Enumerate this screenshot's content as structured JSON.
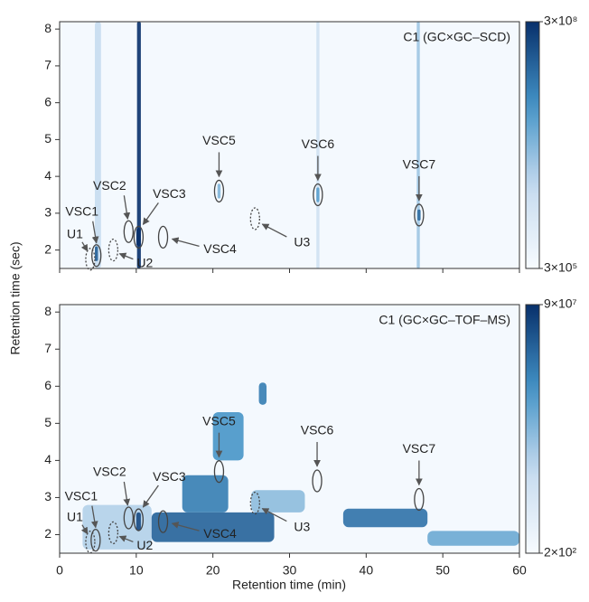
{
  "chart_data": [
    {
      "type": "heatmap",
      "title": "C1 (GC×GC–SCD)",
      "ylabel": "Retention time (sec)",
      "xlim": [
        0,
        60
      ],
      "xticks": [
        0,
        10,
        20,
        30,
        40,
        50,
        60
      ],
      "ylim": [
        1.5,
        8.2
      ],
      "yticks": [
        2,
        3,
        4,
        5,
        6,
        7,
        8
      ],
      "colors": [
        "#f7fbff",
        "#c6dbef",
        "#4292c6",
        "#08306b"
      ],
      "log_color": true,
      "clim": [
        300000,
        300000000
      ],
      "cticks": [
        {
          "value": 300000000,
          "label": "3×10⁸"
        },
        {
          "value": 300000,
          "label": "3×10⁵"
        }
      ],
      "features": [
        {
          "x": [
            4.6,
            5.4
          ],
          "y": [
            1.5,
            8.2
          ],
          "value": 3000000
        },
        {
          "x": [
            33.5,
            33.9
          ],
          "y": [
            1.5,
            8.2
          ],
          "value": 2000000
        },
        {
          "x": [
            46.6,
            47.0
          ],
          "y": [
            1.5,
            8.2
          ],
          "value": 6000000
        },
        {
          "x": [
            10.1,
            10.6
          ],
          "y": [
            1.5,
            8.2
          ],
          "value": 300000000
        },
        {
          "x": [
            4.6,
            5.0
          ],
          "y": [
            1.7,
            2.1
          ],
          "value": 100000000
        },
        {
          "x": [
            10.0,
            10.6
          ],
          "y": [
            2.1,
            2.6
          ],
          "value": 300000000
        },
        {
          "x": [
            46.7,
            47.1
          ],
          "y": [
            2.8,
            3.1
          ],
          "value": 80000000
        },
        {
          "x": [
            33.5,
            33.9
          ],
          "y": [
            3.3,
            3.7
          ],
          "value": 20000000
        },
        {
          "x": [
            20.6,
            21.0
          ],
          "y": [
            3.4,
            3.8
          ],
          "value": 10000000
        }
      ],
      "peaks": [
        {
          "name": "U1",
          "x": 4.0,
          "y": 1.75,
          "dotted": true
        },
        {
          "name": "VSC1",
          "x": 4.8,
          "y": 1.85,
          "dotted": false
        },
        {
          "name": "U2",
          "x": 7.0,
          "y": 2.0,
          "dotted": true
        },
        {
          "name": "VSC2",
          "x": 9.0,
          "y": 2.5,
          "dotted": false
        },
        {
          "name": "VSC3",
          "x": 10.3,
          "y": 2.35,
          "dotted": false
        },
        {
          "name": "VSC4",
          "x": 13.5,
          "y": 2.35,
          "dotted": false
        },
        {
          "name": "VSC5",
          "x": 20.8,
          "y": 3.6,
          "dotted": false
        },
        {
          "name": "U3",
          "x": 25.5,
          "y": 2.85,
          "dotted": true
        },
        {
          "name": "VSC6",
          "x": 33.7,
          "y": 3.5,
          "dotted": false
        },
        {
          "name": "VSC7",
          "x": 46.9,
          "y": 2.95,
          "dotted": false
        }
      ]
    },
    {
      "type": "heatmap",
      "title": "C1 (GC×GC–TOF–MS)",
      "xlabel": "Retention time (min)",
      "xlim": [
        0,
        60
      ],
      "xticks": [
        0,
        10,
        20,
        30,
        40,
        50,
        60
      ],
      "ylim": [
        1.5,
        8.2
      ],
      "yticks": [
        2,
        3,
        4,
        5,
        6,
        7,
        8
      ],
      "colors": [
        "#f7fbff",
        "#c6dbef",
        "#4292c6",
        "#08306b"
      ],
      "log_color": true,
      "clim": [
        200,
        90000000
      ],
      "cticks": [
        {
          "value": 90000000,
          "label": "9×10⁷"
        },
        {
          "value": 200,
          "label": "2×10²"
        }
      ],
      "features": [
        {
          "x": [
            3,
            12
          ],
          "y": [
            1.6,
            2.8
          ],
          "value": 30000
        },
        {
          "x": [
            25,
            32
          ],
          "y": [
            2.6,
            3.2
          ],
          "value": 100000
        },
        {
          "x": [
            48,
            60
          ],
          "y": [
            1.7,
            2.1
          ],
          "value": 300000
        },
        {
          "x": [
            20,
            24
          ],
          "y": [
            4.0,
            5.3
          ],
          "value": 1000000
        },
        {
          "x": [
            26,
            27
          ],
          "y": [
            5.5,
            6.1
          ],
          "value": 3000000
        },
        {
          "x": [
            12,
            28
          ],
          "y": [
            1.8,
            2.6
          ],
          "value": 10000000
        },
        {
          "x": [
            37,
            48
          ],
          "y": [
            2.2,
            2.7
          ],
          "value": 5000000
        },
        {
          "x": [
            16,
            22
          ],
          "y": [
            2.6,
            3.6
          ],
          "value": 3000000
        },
        {
          "x": [
            10.0,
            10.6
          ],
          "y": [
            2.1,
            2.6
          ],
          "value": 30000000
        }
      ],
      "peaks": [
        {
          "name": "U1",
          "x": 4.0,
          "y": 1.8,
          "dotted": true
        },
        {
          "name": "VSC1",
          "x": 4.7,
          "y": 1.85,
          "dotted": false
        },
        {
          "name": "U2",
          "x": 7.0,
          "y": 2.05,
          "dotted": true
        },
        {
          "name": "VSC2",
          "x": 9.0,
          "y": 2.45,
          "dotted": false
        },
        {
          "name": "VSC3",
          "x": 10.3,
          "y": 2.4,
          "dotted": false
        },
        {
          "name": "VSC4",
          "x": 13.5,
          "y": 2.35,
          "dotted": false
        },
        {
          "name": "VSC5",
          "x": 20.8,
          "y": 3.7,
          "dotted": false
        },
        {
          "name": "U3",
          "x": 25.5,
          "y": 2.85,
          "dotted": true
        },
        {
          "name": "VSC6",
          "x": 33.6,
          "y": 3.45,
          "dotted": false
        },
        {
          "name": "VSC7",
          "x": 46.9,
          "y": 2.95,
          "dotted": false
        }
      ]
    }
  ]
}
